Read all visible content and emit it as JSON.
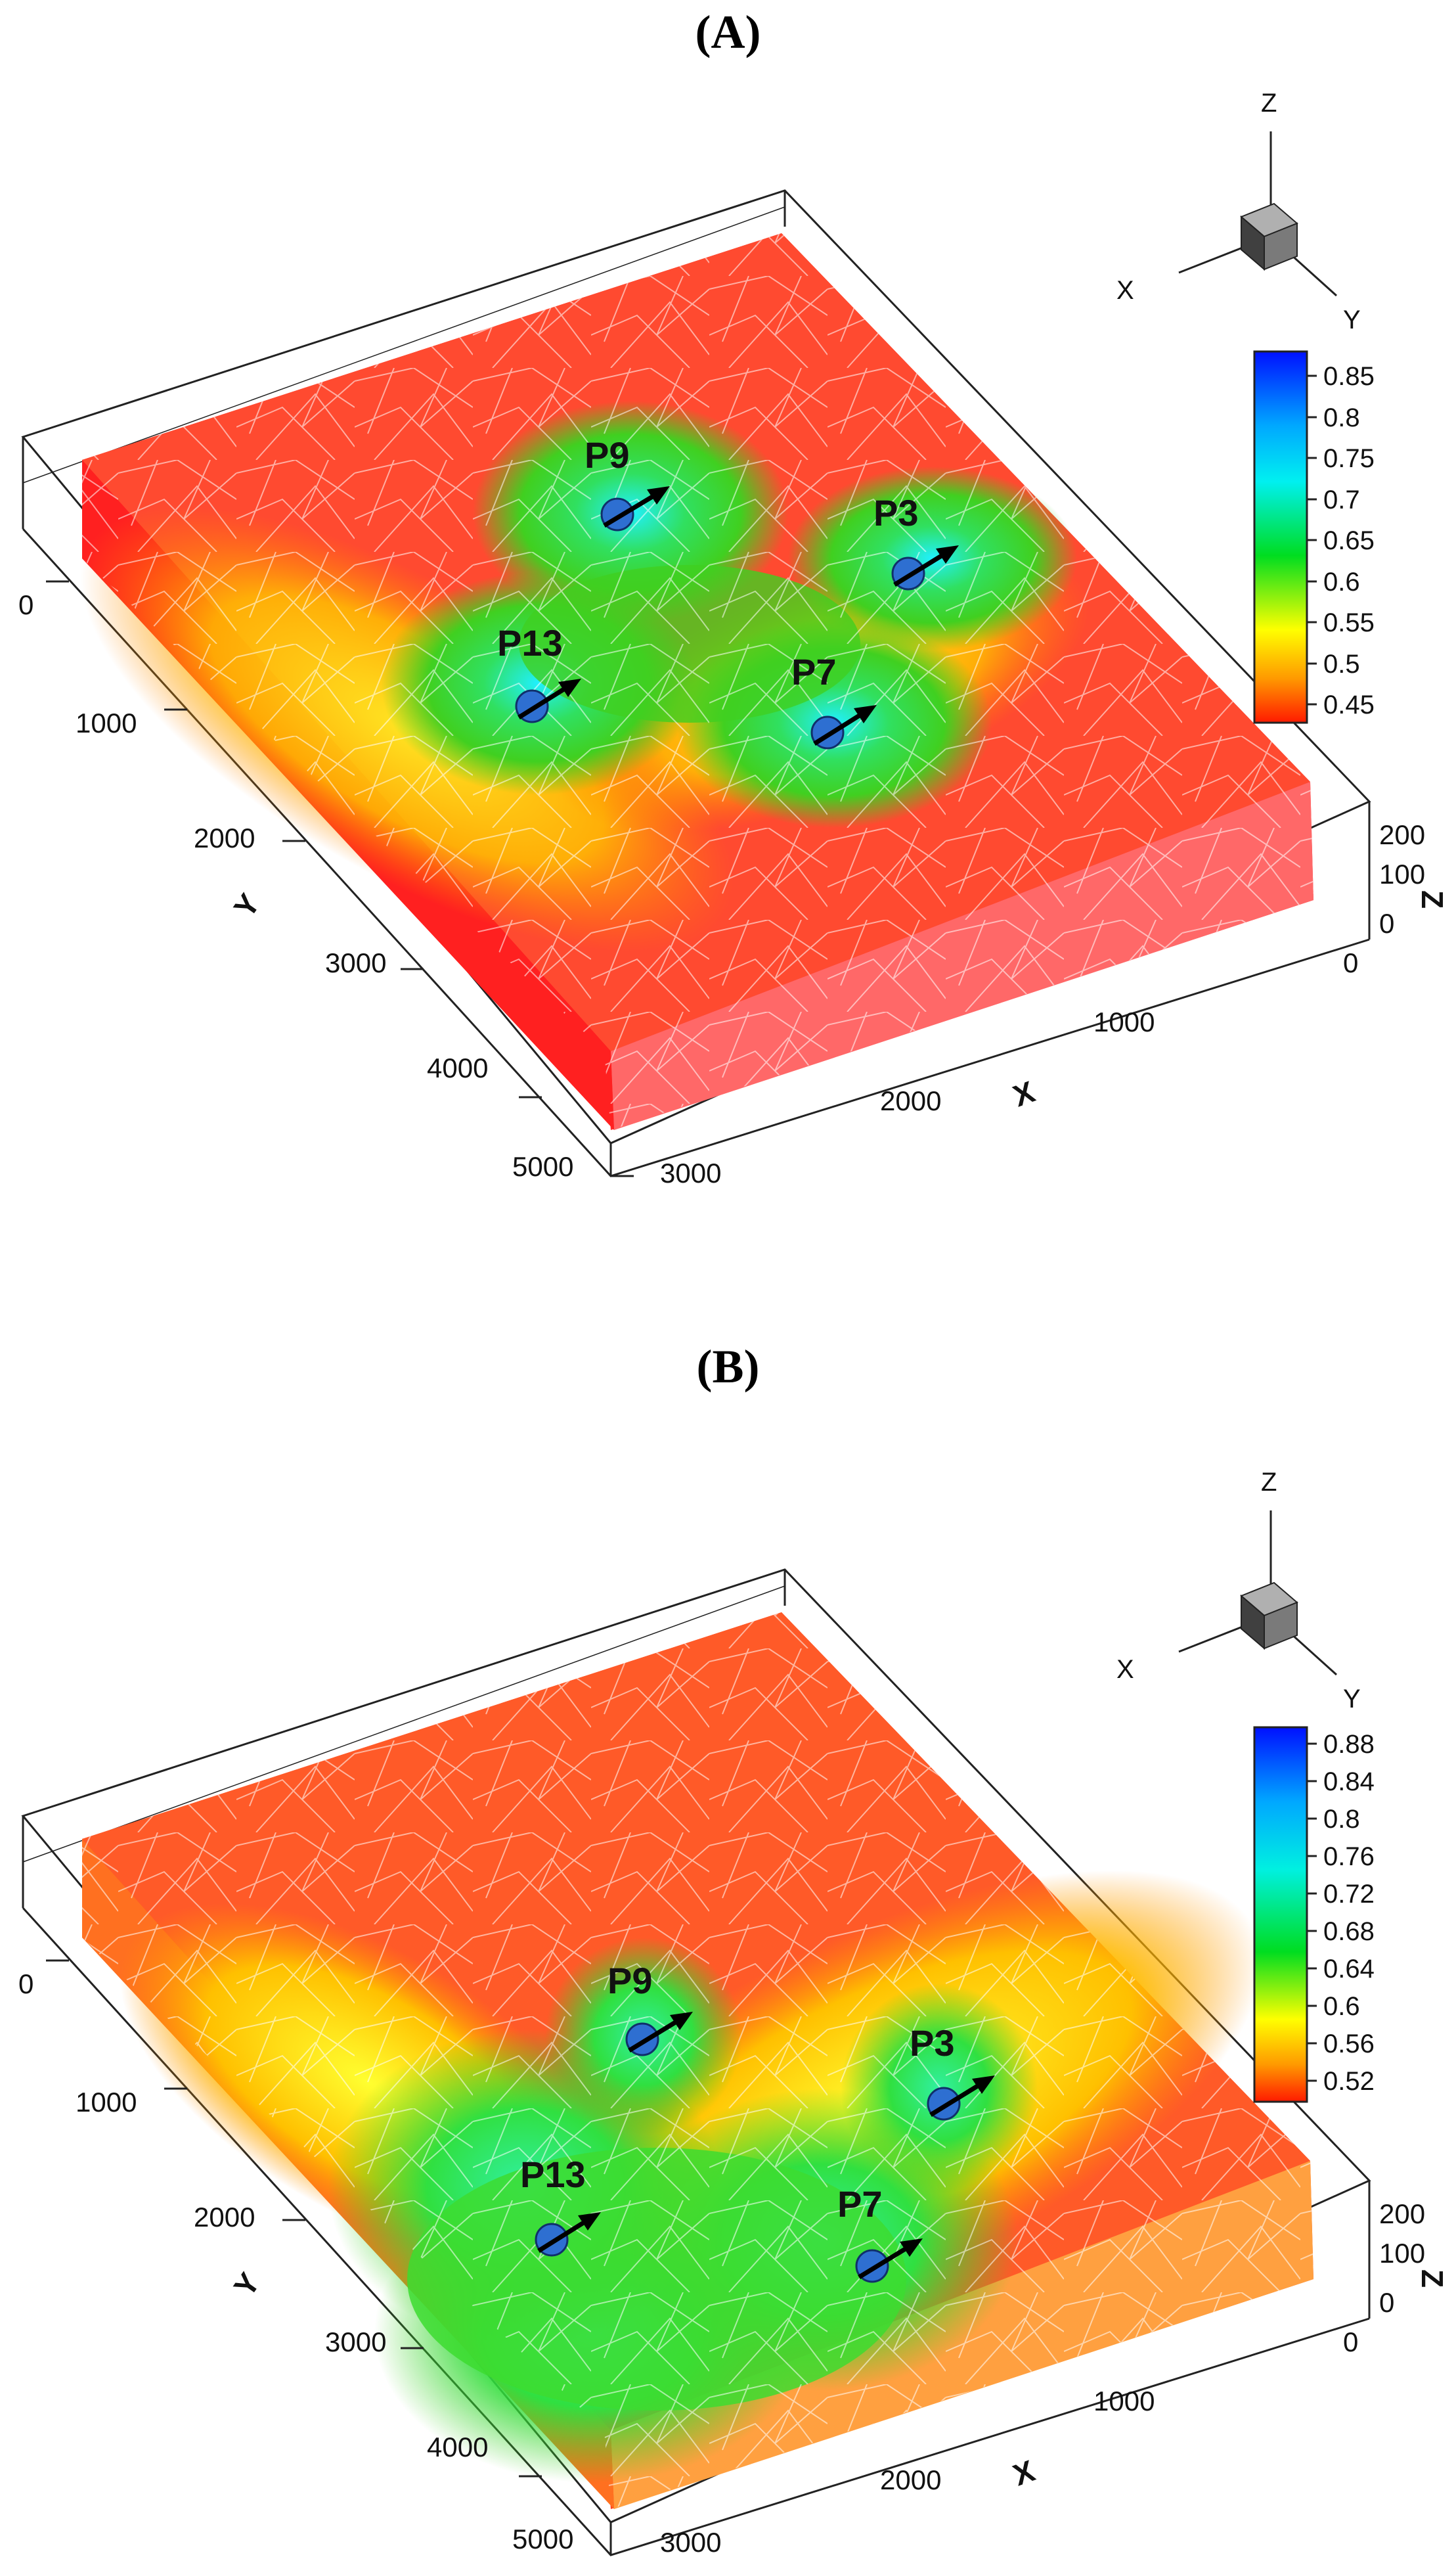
{
  "figure": {
    "panels": [
      {
        "title_open": "(",
        "letter": "A",
        "title_close": ")",
        "colorbar_values": [
          "0.85",
          "0.8",
          "0.75",
          "0.7",
          "0.65",
          "0.6",
          "0.55",
          "0.5",
          "0.45"
        ],
        "wells": [
          "P9",
          "P3",
          "P13",
          "P7"
        ],
        "y_ticks": [
          "0",
          "1000",
          "2000",
          "3000",
          "4000",
          "5000"
        ],
        "x_ticks": [
          "0",
          "1000",
          "2000",
          "3000"
        ],
        "z_ticks": [
          "200",
          "100",
          "0"
        ],
        "axis_x": "X",
        "axis_y": "Y",
        "axis_z": "Z",
        "triad": {
          "z": "Z",
          "x": "X",
          "y": "Y"
        }
      },
      {
        "title_open": "(",
        "letter": "B",
        "title_close": ")",
        "colorbar_values": [
          "0.88",
          "0.84",
          "0.8",
          "0.76",
          "0.72",
          "0.68",
          "0.64",
          "0.6",
          "0.56",
          "0.52"
        ],
        "wells": [
          "P9",
          "P3",
          "P13",
          "P7"
        ],
        "y_ticks": [
          "0",
          "1000",
          "2000",
          "3000",
          "4000",
          "5000"
        ],
        "x_ticks": [
          "0",
          "1000",
          "2000",
          "3000"
        ],
        "z_ticks": [
          "200",
          "100",
          "0"
        ],
        "axis_x": "X",
        "axis_y": "Y",
        "axis_z": "Z",
        "triad": {
          "z": "Z",
          "x": "X",
          "y": "Y"
        }
      }
    ],
    "colors": {
      "colormap": [
        "#ff0000",
        "#ff8000",
        "#ffff00",
        "#00e000",
        "#00ffff",
        "#0000ff"
      ],
      "block_red": "#ff3a3a",
      "well_marker": "#2e6fd1",
      "fracture_lines": "#ffffff"
    }
  }
}
